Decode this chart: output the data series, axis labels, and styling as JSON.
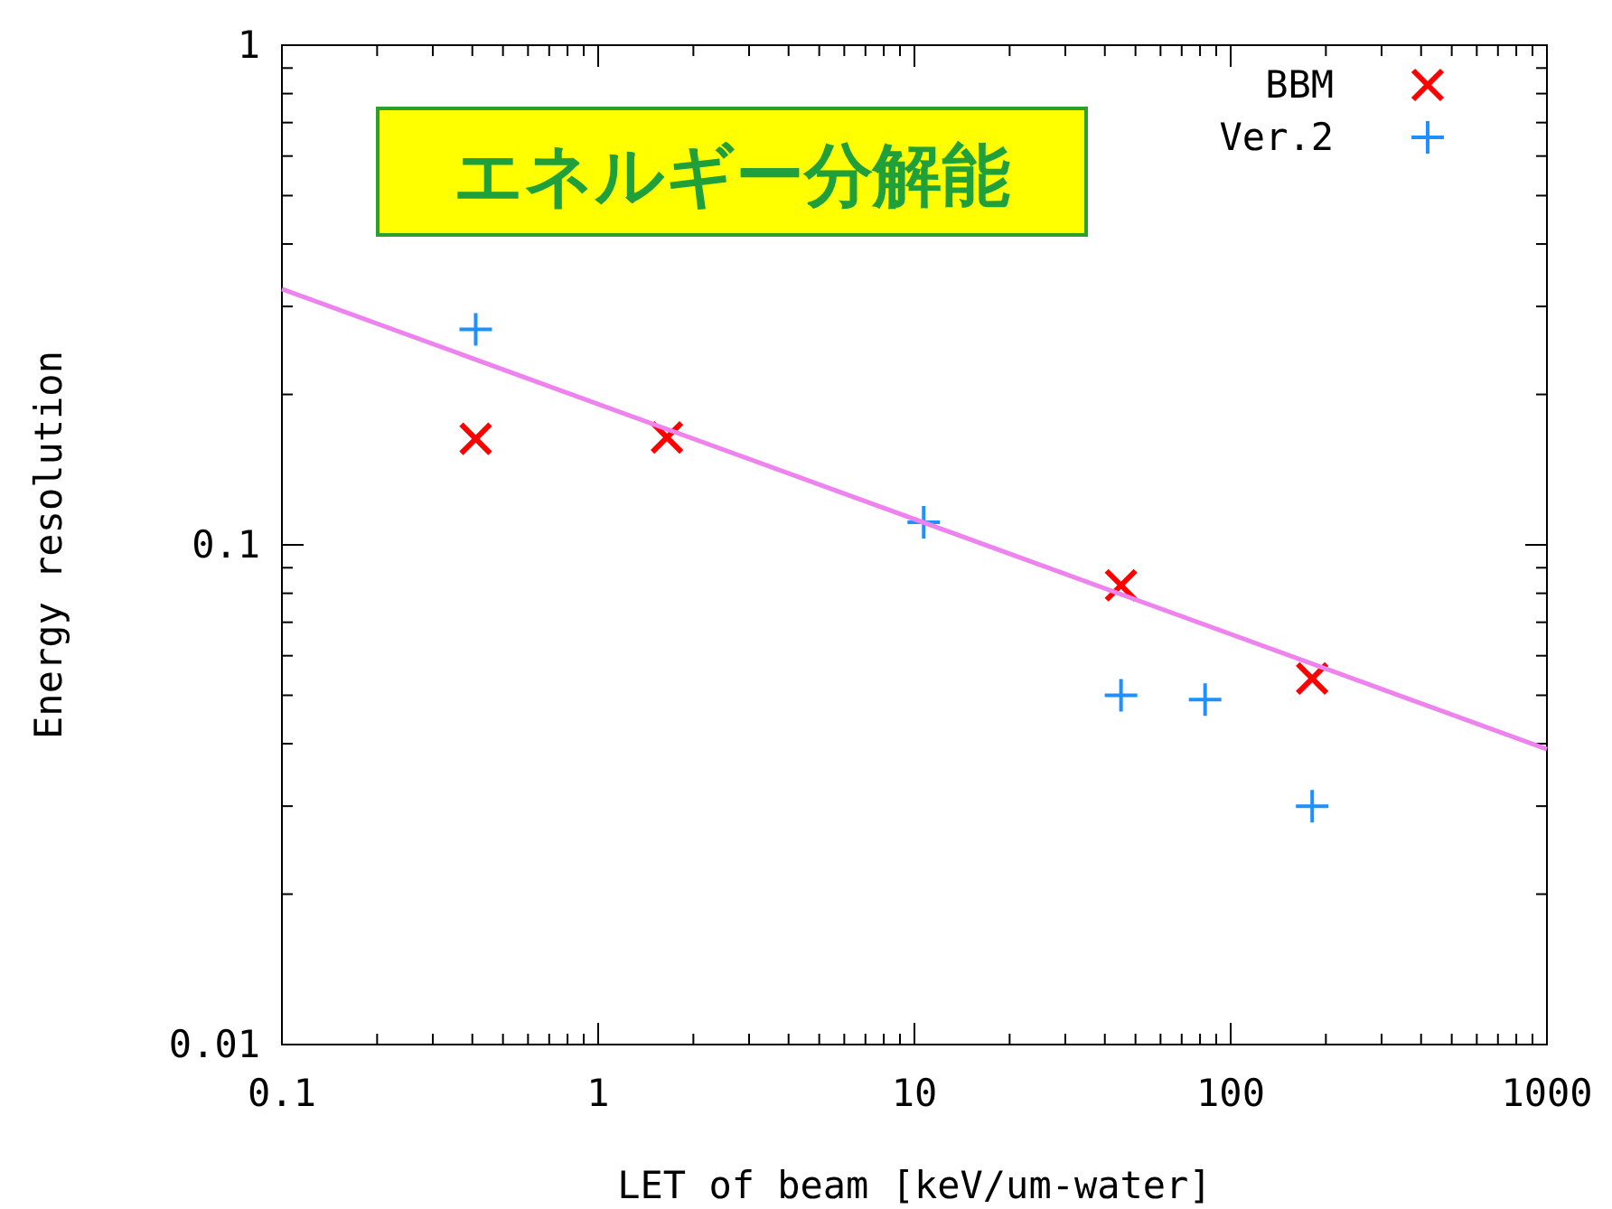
{
  "chart_data": {
    "type": "scatter",
    "xlabel": "LET of beam [keV/um-water]",
    "ylabel": "Energy resolution",
    "log": "xy",
    "xlim": [
      0.1,
      1000
    ],
    "ylim": [
      0.01,
      1
    ],
    "xticks": [
      0.1,
      1,
      10,
      100,
      1000
    ],
    "yticks": [
      0.01,
      0.1,
      1
    ],
    "grid": false,
    "legend": "top right",
    "annotations": [
      "エネルギー分解能"
    ],
    "series": [
      {
        "name": "BBM",
        "color": "#ff0000",
        "marker": "x",
        "x": [
          0.41,
          1.65,
          45,
          181
        ],
        "values": [
          0.163,
          0.164,
          0.083,
          0.054
        ]
      },
      {
        "name": "Ver.2",
        "color": "#1e90ff",
        "marker": "cross",
        "x": [
          0.41,
          10.7,
          45,
          83,
          181
        ],
        "values": [
          0.27,
          0.111,
          0.05,
          0.049,
          0.03
        ]
      },
      {
        "type": "line",
        "color": "#ee82ee",
        "marker": "none",
        "x": [
          0.1,
          1000
        ],
        "values": [
          0.325,
          0.039
        ]
      }
    ]
  }
}
